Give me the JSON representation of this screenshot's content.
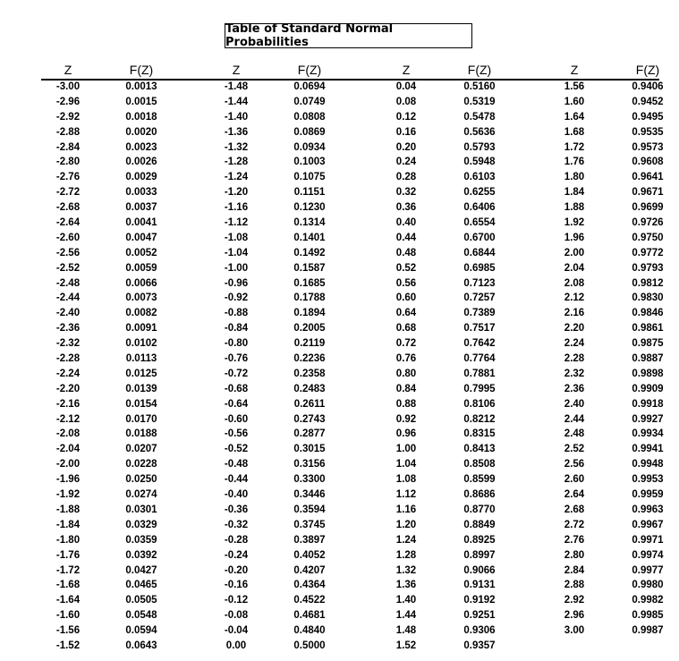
{
  "title": "Table of Standard Normal Probabilities",
  "headers": {
    "z": "Z",
    "f": "F(Z)"
  },
  "columns": [
    {
      "rows": [
        [
          "-3.00",
          "0.0013"
        ],
        [
          "-2.96",
          "0.0015"
        ],
        [
          "-2.92",
          "0.0018"
        ],
        [
          "-2.88",
          "0.0020"
        ],
        [
          "-2.84",
          "0.0023"
        ],
        [
          "-2.80",
          "0.0026"
        ],
        [
          "-2.76",
          "0.0029"
        ],
        [
          "-2.72",
          "0.0033"
        ],
        [
          "-2.68",
          "0.0037"
        ],
        [
          "-2.64",
          "0.0041"
        ],
        [
          "-2.60",
          "0.0047"
        ],
        [
          "-2.56",
          "0.0052"
        ],
        [
          "-2.52",
          "0.0059"
        ],
        [
          "-2.48",
          "0.0066"
        ],
        [
          "-2.44",
          "0.0073"
        ],
        [
          "-2.40",
          "0.0082"
        ],
        [
          "-2.36",
          "0.0091"
        ],
        [
          "-2.32",
          "0.0102"
        ],
        [
          "-2.28",
          "0.0113"
        ],
        [
          "-2.24",
          "0.0125"
        ],
        [
          "-2.20",
          "0.0139"
        ],
        [
          "-2.16",
          "0.0154"
        ],
        [
          "-2.12",
          "0.0170"
        ],
        [
          "-2.08",
          "0.0188"
        ],
        [
          "-2.04",
          "0.0207"
        ],
        [
          "-2.00",
          "0.0228"
        ],
        [
          "-1.96",
          "0.0250"
        ],
        [
          "-1.92",
          "0.0274"
        ],
        [
          "-1.88",
          "0.0301"
        ],
        [
          "-1.84",
          "0.0329"
        ],
        [
          "-1.80",
          "0.0359"
        ],
        [
          "-1.76",
          "0.0392"
        ],
        [
          "-1.72",
          "0.0427"
        ],
        [
          "-1.68",
          "0.0465"
        ],
        [
          "-1.64",
          "0.0505"
        ],
        [
          "-1.60",
          "0.0548"
        ],
        [
          "-1.56",
          "0.0594"
        ],
        [
          "-1.52",
          "0.0643"
        ]
      ]
    },
    {
      "rows": [
        [
          "-1.48",
          "0.0694"
        ],
        [
          "-1.44",
          "0.0749"
        ],
        [
          "-1.40",
          "0.0808"
        ],
        [
          "-1.36",
          "0.0869"
        ],
        [
          "-1.32",
          "0.0934"
        ],
        [
          "-1.28",
          "0.1003"
        ],
        [
          "-1.24",
          "0.1075"
        ],
        [
          "-1.20",
          "0.1151"
        ],
        [
          "-1.16",
          "0.1230"
        ],
        [
          "-1.12",
          "0.1314"
        ],
        [
          "-1.08",
          "0.1401"
        ],
        [
          "-1.04",
          "0.1492"
        ],
        [
          "-1.00",
          "0.1587"
        ],
        [
          "-0.96",
          "0.1685"
        ],
        [
          "-0.92",
          "0.1788"
        ],
        [
          "-0.88",
          "0.1894"
        ],
        [
          "-0.84",
          "0.2005"
        ],
        [
          "-0.80",
          "0.2119"
        ],
        [
          "-0.76",
          "0.2236"
        ],
        [
          "-0.72",
          "0.2358"
        ],
        [
          "-0.68",
          "0.2483"
        ],
        [
          "-0.64",
          "0.2611"
        ],
        [
          "-0.60",
          "0.2743"
        ],
        [
          "-0.56",
          "0.2877"
        ],
        [
          "-0.52",
          "0.3015"
        ],
        [
          "-0.48",
          "0.3156"
        ],
        [
          "-0.44",
          "0.3300"
        ],
        [
          "-0.40",
          "0.3446"
        ],
        [
          "-0.36",
          "0.3594"
        ],
        [
          "-0.32",
          "0.3745"
        ],
        [
          "-0.28",
          "0.3897"
        ],
        [
          "-0.24",
          "0.4052"
        ],
        [
          "-0.20",
          "0.4207"
        ],
        [
          "-0.16",
          "0.4364"
        ],
        [
          "-0.12",
          "0.4522"
        ],
        [
          "-0.08",
          "0.4681"
        ],
        [
          "-0.04",
          "0.4840"
        ],
        [
          "0.00",
          "0.5000"
        ]
      ]
    },
    {
      "rows": [
        [
          "0.04",
          "0.5160"
        ],
        [
          "0.08",
          "0.5319"
        ],
        [
          "0.12",
          "0.5478"
        ],
        [
          "0.16",
          "0.5636"
        ],
        [
          "0.20",
          "0.5793"
        ],
        [
          "0.24",
          "0.5948"
        ],
        [
          "0.28",
          "0.6103"
        ],
        [
          "0.32",
          "0.6255"
        ],
        [
          "0.36",
          "0.6406"
        ],
        [
          "0.40",
          "0.6554"
        ],
        [
          "0.44",
          "0.6700"
        ],
        [
          "0.48",
          "0.6844"
        ],
        [
          "0.52",
          "0.6985"
        ],
        [
          "0.56",
          "0.7123"
        ],
        [
          "0.60",
          "0.7257"
        ],
        [
          "0.64",
          "0.7389"
        ],
        [
          "0.68",
          "0.7517"
        ],
        [
          "0.72",
          "0.7642"
        ],
        [
          "0.76",
          "0.7764"
        ],
        [
          "0.80",
          "0.7881"
        ],
        [
          "0.84",
          "0.7995"
        ],
        [
          "0.88",
          "0.8106"
        ],
        [
          "0.92",
          "0.8212"
        ],
        [
          "0.96",
          "0.8315"
        ],
        [
          "1.00",
          "0.8413"
        ],
        [
          "1.04",
          "0.8508"
        ],
        [
          "1.08",
          "0.8599"
        ],
        [
          "1.12",
          "0.8686"
        ],
        [
          "1.16",
          "0.8770"
        ],
        [
          "1.20",
          "0.8849"
        ],
        [
          "1.24",
          "0.8925"
        ],
        [
          "1.28",
          "0.8997"
        ],
        [
          "1.32",
          "0.9066"
        ],
        [
          "1.36",
          "0.9131"
        ],
        [
          "1.40",
          "0.9192"
        ],
        [
          "1.44",
          "0.9251"
        ],
        [
          "1.48",
          "0.9306"
        ],
        [
          "1.52",
          "0.9357"
        ]
      ]
    },
    {
      "rows": [
        [
          "1.56",
          "0.9406"
        ],
        [
          "1.60",
          "0.9452"
        ],
        [
          "1.64",
          "0.9495"
        ],
        [
          "1.68",
          "0.9535"
        ],
        [
          "1.72",
          "0.9573"
        ],
        [
          "1.76",
          "0.9608"
        ],
        [
          "1.80",
          "0.9641"
        ],
        [
          "1.84",
          "0.9671"
        ],
        [
          "1.88",
          "0.9699"
        ],
        [
          "1.92",
          "0.9726"
        ],
        [
          "1.96",
          "0.9750"
        ],
        [
          "2.00",
          "0.9772"
        ],
        [
          "2.04",
          "0.9793"
        ],
        [
          "2.08",
          "0.9812"
        ],
        [
          "2.12",
          "0.9830"
        ],
        [
          "2.16",
          "0.9846"
        ],
        [
          "2.20",
          "0.9861"
        ],
        [
          "2.24",
          "0.9875"
        ],
        [
          "2.28",
          "0.9887"
        ],
        [
          "2.32",
          "0.9898"
        ],
        [
          "2.36",
          "0.9909"
        ],
        [
          "2.40",
          "0.9918"
        ],
        [
          "2.44",
          "0.9927"
        ],
        [
          "2.48",
          "0.9934"
        ],
        [
          "2.52",
          "0.9941"
        ],
        [
          "2.56",
          "0.9948"
        ],
        [
          "2.60",
          "0.9953"
        ],
        [
          "2.64",
          "0.9959"
        ],
        [
          "2.68",
          "0.9963"
        ],
        [
          "2.72",
          "0.9967"
        ],
        [
          "2.76",
          "0.9971"
        ],
        [
          "2.80",
          "0.9974"
        ],
        [
          "2.84",
          "0.9977"
        ],
        [
          "2.88",
          "0.9980"
        ],
        [
          "2.92",
          "0.9982"
        ],
        [
          "2.96",
          "0.9985"
        ],
        [
          "3.00",
          "0.9987"
        ]
      ]
    }
  ]
}
